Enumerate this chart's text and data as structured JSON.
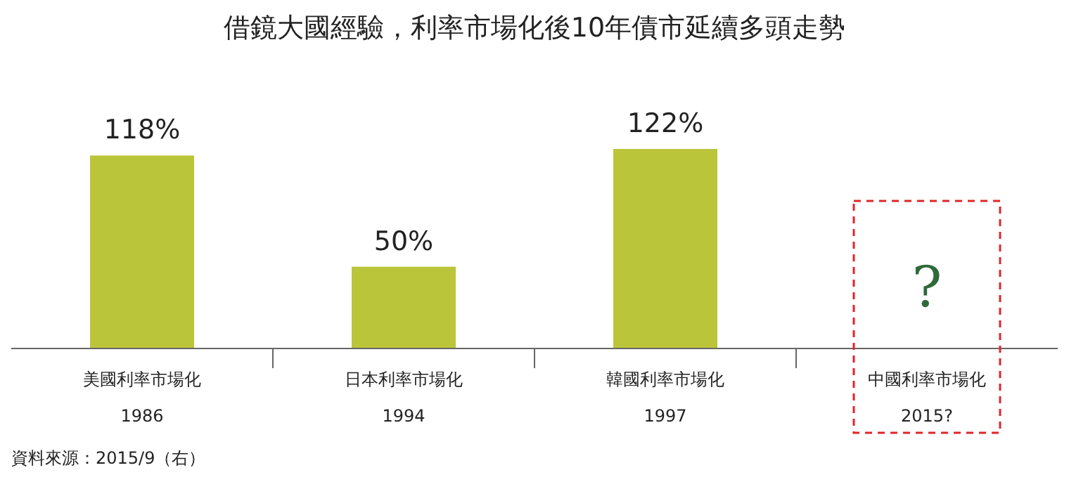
{
  "chart_data": {
    "type": "bar",
    "title": "借鏡大國經驗，利率市場化後10年債市延續多頭走勢",
    "categories": [
      "美國利率市場化\n1986",
      "日本利率市場化\n1994",
      "韓國利率市場化\n1997",
      "中國利率市場化\n2015?"
    ],
    "values": [
      118,
      50,
      122,
      null
    ],
    "value_labels": [
      "118%",
      "50%",
      "122%",
      null
    ],
    "color": "#bbc53a",
    "annotations": [
      "?",
      "資料來源：2015/9（右）"
    ]
  }
}
